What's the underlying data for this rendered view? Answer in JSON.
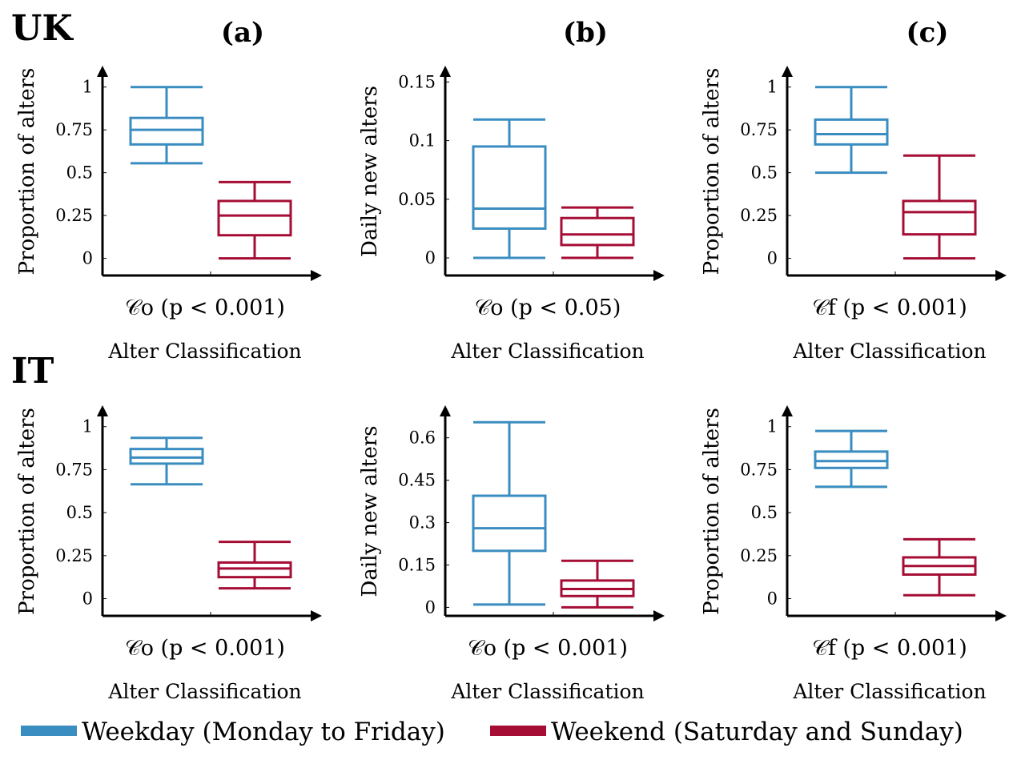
{
  "regions": [
    "UK",
    "IT"
  ],
  "panel_titles": [
    "(a)",
    "(b)",
    "(c)"
  ],
  "legend": [
    {
      "label": "Weekday (Monday to Friday)",
      "color": "#3a8dc0"
    },
    {
      "label": "Weekend (Saturday and Sunday)",
      "color": "#a50d35"
    }
  ],
  "chart_data": [
    {
      "type": "box",
      "region": "UK",
      "title": "(a)",
      "ylabel": "Proportion of alters",
      "category": "𝒞o (p < 0.001)",
      "xlabel": "Alter Classification",
      "ylim": [
        -0.1,
        1.05
      ],
      "yticks": [
        0,
        0.25,
        0.5,
        0.75,
        1
      ],
      "yticklabels": [
        "0",
        "0.25",
        "0.5",
        "0.75",
        "1"
      ],
      "series": [
        {
          "name": "Weekday",
          "min": 0.555,
          "q1": 0.665,
          "median": 0.75,
          "q3": 0.82,
          "max": 1.0
        },
        {
          "name": "Weekend",
          "min": 0.0,
          "q1": 0.135,
          "median": 0.25,
          "q3": 0.335,
          "max": 0.445
        }
      ]
    },
    {
      "type": "box",
      "region": "UK",
      "title": "(b)",
      "ylabel": "Daily new alters",
      "category": "𝒞o (p < 0.05)",
      "xlabel": "Alter Classification",
      "ylim": [
        -0.015,
        0.153
      ],
      "yticks": [
        0,
        0.05,
        0.1,
        0.15
      ],
      "yticklabels": [
        "0",
        "0.05",
        "0.1",
        "0.15"
      ],
      "series": [
        {
          "name": "Weekday",
          "min": 0.0,
          "q1": 0.025,
          "median": 0.042,
          "q3": 0.095,
          "max": 0.118
        },
        {
          "name": "Weekend",
          "min": 0.0,
          "q1": 0.011,
          "median": 0.02,
          "q3": 0.034,
          "max": 0.043
        }
      ]
    },
    {
      "type": "box",
      "region": "UK",
      "title": "(c)",
      "ylabel": "Proportion of alters",
      "category": "𝒞f (p < 0.001)",
      "xlabel": "Alter Classification",
      "ylim": [
        -0.1,
        1.05
      ],
      "yticks": [
        0,
        0.25,
        0.5,
        0.75,
        1
      ],
      "yticklabels": [
        "0",
        "0.25",
        "0.5",
        "0.75",
        "1"
      ],
      "series": [
        {
          "name": "Weekday",
          "min": 0.5,
          "q1": 0.665,
          "median": 0.725,
          "q3": 0.81,
          "max": 1.0
        },
        {
          "name": "Weekend",
          "min": 0.0,
          "q1": 0.14,
          "median": 0.27,
          "q3": 0.335,
          "max": 0.6
        }
      ]
    },
    {
      "type": "box",
      "region": "IT",
      "title": "",
      "ylabel": "Proportion of alters",
      "category": "𝒞o (p < 0.001)",
      "xlabel": "Alter Classification",
      "ylim": [
        -0.1,
        1.05
      ],
      "yticks": [
        0,
        0.25,
        0.5,
        0.75,
        1
      ],
      "yticklabels": [
        "0",
        "0.25",
        "0.5",
        "0.75",
        "1"
      ],
      "series": [
        {
          "name": "Weekday",
          "min": 0.665,
          "q1": 0.785,
          "median": 0.82,
          "q3": 0.87,
          "max": 0.935
        },
        {
          "name": "Weekend",
          "min": 0.06,
          "q1": 0.125,
          "median": 0.175,
          "q3": 0.21,
          "max": 0.33
        }
      ]
    },
    {
      "type": "box",
      "region": "IT",
      "title": "",
      "ylabel": "Daily new alters",
      "category": "𝒞o (p < 0.001)",
      "xlabel": "Alter Classification",
      "ylim": [
        -0.03,
        0.67
      ],
      "yticks": [
        0,
        0.15,
        0.3,
        0.45,
        0.6
      ],
      "yticklabels": [
        "0",
        "0.15",
        "0.3",
        "0.45",
        "0.6"
      ],
      "series": [
        {
          "name": "Weekday",
          "min": 0.01,
          "q1": 0.2,
          "median": 0.28,
          "q3": 0.395,
          "max": 0.655
        },
        {
          "name": "Weekend",
          "min": 0.0,
          "q1": 0.04,
          "median": 0.065,
          "q3": 0.095,
          "max": 0.165
        }
      ]
    },
    {
      "type": "box",
      "region": "IT",
      "title": "",
      "ylabel": "Proportion of alters",
      "category": "𝒞f (p < 0.001)",
      "xlabel": "Alter Classification",
      "ylim": [
        -0.1,
        1.05
      ],
      "yticks": [
        0,
        0.25,
        0.5,
        0.75,
        1
      ],
      "yticklabels": [
        "0",
        "0.25",
        "0.5",
        "0.75",
        "1"
      ],
      "series": [
        {
          "name": "Weekday",
          "min": 0.65,
          "q1": 0.76,
          "median": 0.8,
          "q3": 0.855,
          "max": 0.975
        },
        {
          "name": "Weekend",
          "min": 0.02,
          "q1": 0.14,
          "median": 0.19,
          "q3": 0.24,
          "max": 0.345
        }
      ]
    }
  ]
}
